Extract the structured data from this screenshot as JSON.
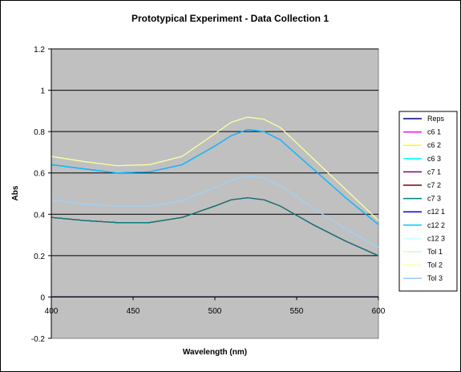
{
  "chart_data": {
    "type": "line",
    "title": "Prototypical Experiment - Data Collection 1",
    "xlabel": "Wavelength (nm)",
    "ylabel": "Abs",
    "xlim": [
      400,
      600
    ],
    "ylim": [
      -0.2,
      1.2
    ],
    "xticks": [
      400,
      450,
      500,
      550,
      600
    ],
    "yticks": [
      -0.2,
      0,
      0.2,
      0.4,
      0.6,
      0.8,
      1,
      1.2
    ],
    "xtick_labels": [
      "400",
      "450",
      "500",
      "550",
      "600"
    ],
    "ytick_labels": [
      "-0.2",
      "0",
      "0.2",
      "0.4",
      "0.6",
      "0.8",
      "1",
      "1.2"
    ],
    "grid": "horizontal",
    "plot_background": "#c0c0c0",
    "legend_position": "right",
    "x": [
      400,
      420,
      440,
      460,
      480,
      500,
      510,
      520,
      530,
      540,
      560,
      580,
      600
    ],
    "series": [
      {
        "name": "Reps",
        "color": "#000080",
        "values": [
          0,
          0,
          0,
          0,
          0,
          0,
          0,
          0,
          0,
          0,
          0,
          0,
          0
        ]
      },
      {
        "name": "c6 1",
        "color": "#ff00ff",
        "values": [
          0.385,
          0.37,
          0.36,
          0.36,
          0.385,
          0.44,
          0.47,
          0.48,
          0.47,
          0.44,
          0.35,
          0.27,
          0.2
        ]
      },
      {
        "name": "c6 2",
        "color": "#ffff00",
        "values": [
          0.385,
          0.37,
          0.36,
          0.36,
          0.385,
          0.44,
          0.47,
          0.48,
          0.47,
          0.44,
          0.35,
          0.27,
          0.2
        ]
      },
      {
        "name": "c6 3",
        "color": "#00ffff",
        "values": [
          0.385,
          0.37,
          0.36,
          0.36,
          0.385,
          0.44,
          0.47,
          0.48,
          0.47,
          0.44,
          0.35,
          0.27,
          0.2
        ]
      },
      {
        "name": "c7 1",
        "color": "#800080",
        "values": [
          0.385,
          0.37,
          0.36,
          0.36,
          0.385,
          0.44,
          0.47,
          0.48,
          0.47,
          0.44,
          0.35,
          0.27,
          0.2
        ]
      },
      {
        "name": "c7 2",
        "color": "#800000",
        "values": [
          0.385,
          0.37,
          0.36,
          0.36,
          0.385,
          0.44,
          0.47,
          0.48,
          0.47,
          0.44,
          0.35,
          0.27,
          0.2
        ]
      },
      {
        "name": "c7 3",
        "color": "#008080",
        "values": [
          0.385,
          0.37,
          0.36,
          0.36,
          0.385,
          0.44,
          0.47,
          0.48,
          0.47,
          0.44,
          0.35,
          0.27,
          0.2
        ]
      },
      {
        "name": "c12 1",
        "color": "#0000ff",
        "values": [
          0.64,
          0.62,
          0.6,
          0.605,
          0.64,
          0.73,
          0.78,
          0.81,
          0.8,
          0.76,
          0.62,
          0.48,
          0.35
        ]
      },
      {
        "name": "c12 2",
        "color": "#00ccff",
        "values": [
          0.64,
          0.62,
          0.6,
          0.605,
          0.64,
          0.73,
          0.78,
          0.81,
          0.8,
          0.76,
          0.62,
          0.48,
          0.35
        ]
      },
      {
        "name": "c12 3",
        "color": "#ccffff",
        "values": [
          0.68,
          0.655,
          0.635,
          0.64,
          0.68,
          0.79,
          0.845,
          0.87,
          0.86,
          0.82,
          0.67,
          0.52,
          0.37
        ]
      },
      {
        "name": "Tol 1",
        "color": "#ccffcc",
        "values": [
          0.47,
          0.45,
          0.44,
          0.44,
          0.465,
          0.53,
          0.565,
          0.585,
          0.575,
          0.54,
          0.43,
          0.33,
          0.24
        ]
      },
      {
        "name": "Tol 2",
        "color": "#ffff99",
        "values": [
          0.68,
          0.655,
          0.635,
          0.64,
          0.68,
          0.79,
          0.845,
          0.87,
          0.86,
          0.82,
          0.67,
          0.52,
          0.37
        ]
      },
      {
        "name": "Tol 3",
        "color": "#99ccff",
        "values": [
          0.47,
          0.45,
          0.44,
          0.44,
          0.465,
          0.53,
          0.565,
          0.585,
          0.575,
          0.54,
          0.43,
          0.33,
          0.24
        ]
      }
    ]
  }
}
